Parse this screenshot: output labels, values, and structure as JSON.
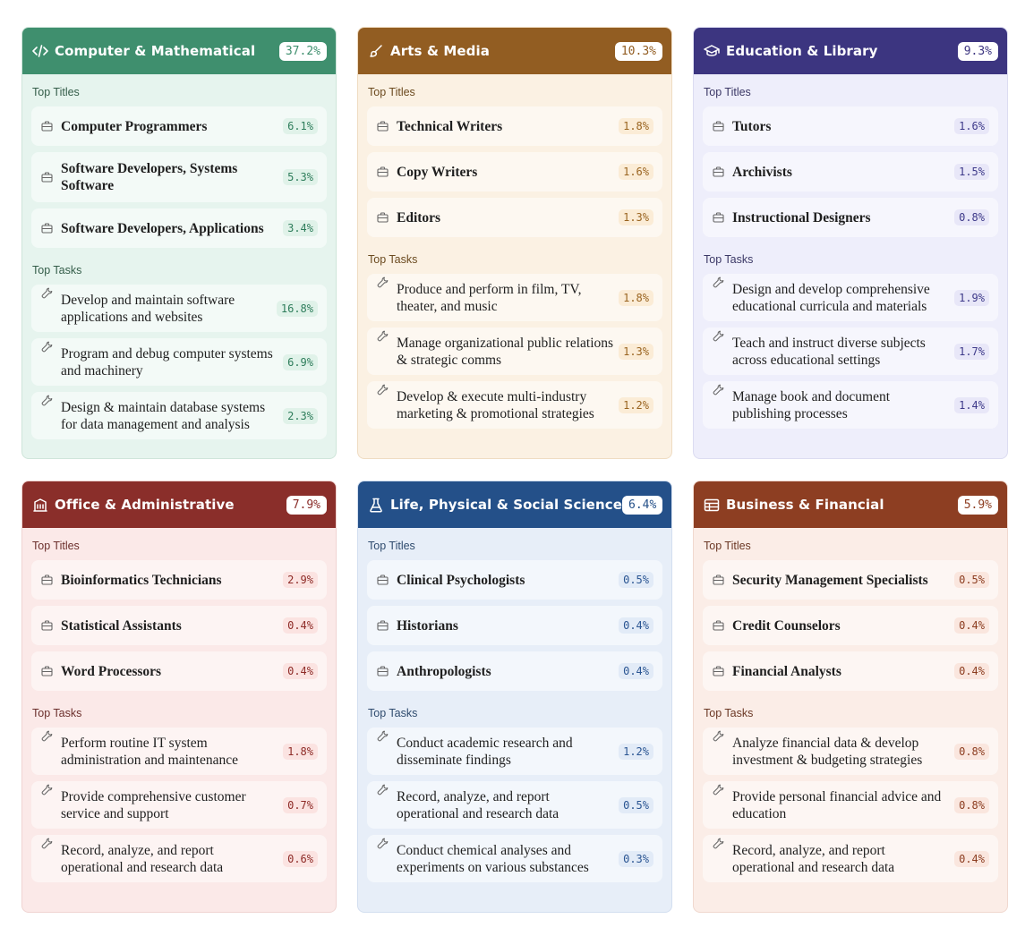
{
  "icons": {
    "title_item": "briefcase-icon",
    "task_item": "wrench-icon"
  },
  "labels": {
    "top_titles": "Top Titles",
    "top_tasks": "Top Tasks"
  },
  "cards": [
    {
      "title": "Computer & Mathematical",
      "pct": "37.2%",
      "icon": "code-icon",
      "colors": {
        "header": "#3f8f6e",
        "body": "#e6f4ee",
        "border": "#cfe5da",
        "item": "#f3faf7",
        "badge": "#e0f2e9",
        "badge_text": "#2e7d5b",
        "label": "#355e4a"
      },
      "titles": [
        {
          "label": "Computer Programmers",
          "pct": "6.1%"
        },
        {
          "label": "Software Developers, Systems Software",
          "pct": "5.3%"
        },
        {
          "label": "Software Developers, Applications",
          "pct": "3.4%"
        }
      ],
      "tasks": [
        {
          "label": "Develop and maintain software applications and websites",
          "pct": "16.8%"
        },
        {
          "label": "Program and debug computer systems and machinery",
          "pct": "6.9%"
        },
        {
          "label": "Design & maintain database systems for data management and analysis",
          "pct": "2.3%"
        }
      ]
    },
    {
      "title": "Arts & Media",
      "pct": "10.3%",
      "icon": "brush-icon",
      "colors": {
        "header": "#925d22",
        "body": "#fbf1e3",
        "border": "#efdcc2",
        "item": "#fdf8f1",
        "badge": "#fbecd6",
        "badge_text": "#9a6420",
        "label": "#6b4a1f"
      },
      "titles": [
        {
          "label": "Technical Writers",
          "pct": "1.8%"
        },
        {
          "label": "Copy Writers",
          "pct": "1.6%"
        },
        {
          "label": "Editors",
          "pct": "1.3%"
        }
      ],
      "tasks": [
        {
          "label": "Produce and perform in film, TV, theater, and music",
          "pct": "1.8%"
        },
        {
          "label": "Manage organizational public relations & strategic comms",
          "pct": "1.3%"
        },
        {
          "label": "Develop & execute multi-industry marketing & promotional strategies",
          "pct": "1.2%"
        }
      ]
    },
    {
      "title": "Education & Library",
      "pct": "9.3%",
      "icon": "graduation-cap-icon",
      "colors": {
        "header": "#3c3580",
        "body": "#eeeefb",
        "border": "#dcdcf1",
        "item": "#f6f6fd",
        "badge": "#e8e7f8",
        "badge_text": "#3e3a8a",
        "label": "#3b3866"
      },
      "titles": [
        {
          "label": "Tutors",
          "pct": "1.6%"
        },
        {
          "label": "Archivists",
          "pct": "1.5%"
        },
        {
          "label": "Instructional Designers",
          "pct": "0.8%"
        }
      ],
      "tasks": [
        {
          "label": "Design and develop comprehensive educational curricula and materials",
          "pct": "1.9%"
        },
        {
          "label": "Teach and instruct diverse subjects across educational settings",
          "pct": "1.7%"
        },
        {
          "label": "Manage book and document publishing processes",
          "pct": "1.4%"
        }
      ]
    },
    {
      "title": "Office & Administrative",
      "pct": "7.9%",
      "icon": "building-icon",
      "colors": {
        "header": "#8a2e2a",
        "body": "#fbe9e8",
        "border": "#f0d4d2",
        "item": "#fdf4f3",
        "badge": "#fbe3e1",
        "badge_text": "#8e2b27",
        "label": "#6b2f2c"
      },
      "titles": [
        {
          "label": "Bioinformatics Technicians",
          "pct": "2.9%"
        },
        {
          "label": "Statistical Assistants",
          "pct": "0.4%"
        },
        {
          "label": "Word Processors",
          "pct": "0.4%"
        }
      ],
      "tasks": [
        {
          "label": "Perform routine IT system administration and maintenance",
          "pct": "1.8%"
        },
        {
          "label": "Provide comprehensive customer service and support",
          "pct": "0.7%"
        },
        {
          "label": "Record, analyze, and report operational and research data",
          "pct": "0.6%"
        }
      ]
    },
    {
      "title": "Life, Physical & Social Science",
      "pct": "6.4%",
      "icon": "flask-icon",
      "colors": {
        "header": "#245089",
        "body": "#e7eef8",
        "border": "#d3dff0",
        "item": "#f3f7fc",
        "badge": "#e2ebf7",
        "badge_text": "#2a5592",
        "label": "#2f4b6e"
      },
      "titles": [
        {
          "label": "Clinical Psychologists",
          "pct": "0.5%"
        },
        {
          "label": "Historians",
          "pct": "0.4%"
        },
        {
          "label": "Anthropologists",
          "pct": "0.4%"
        }
      ],
      "tasks": [
        {
          "label": "Conduct academic research and disseminate findings",
          "pct": "1.2%"
        },
        {
          "label": "Record, analyze, and report operational and research data",
          "pct": "0.5%"
        },
        {
          "label": "Conduct chemical analyses and experiments on various substances",
          "pct": "0.3%"
        }
      ]
    },
    {
      "title": "Business & Financial",
      "pct": "5.9%",
      "icon": "ledger-icon",
      "colors": {
        "header": "#8d3e22",
        "body": "#fbede7",
        "border": "#f0d8cf",
        "item": "#fdf6f3",
        "badge": "#fae6de",
        "badge_text": "#8c3d20",
        "label": "#6b3825"
      },
      "titles": [
        {
          "label": "Security Management Specialists",
          "pct": "0.5%"
        },
        {
          "label": "Credit Counselors",
          "pct": "0.4%"
        },
        {
          "label": "Financial Analysts",
          "pct": "0.4%"
        }
      ],
      "tasks": [
        {
          "label": "Analyze financial data & develop investment & budgeting strategies",
          "pct": "0.8%"
        },
        {
          "label": "Provide personal financial advice and education",
          "pct": "0.8%"
        },
        {
          "label": "Record, analyze, and report operational and research data",
          "pct": "0.4%"
        }
      ]
    }
  ]
}
